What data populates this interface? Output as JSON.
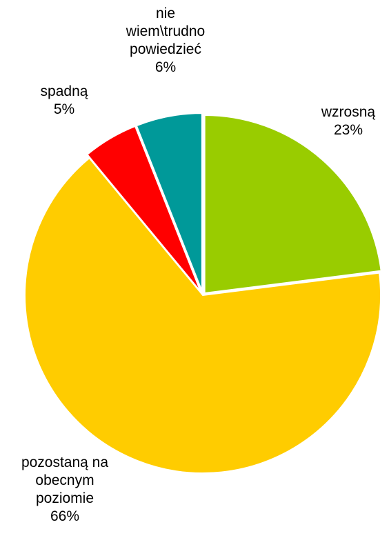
{
  "chart_data": {
    "type": "pie",
    "start_angle_deg": 0,
    "direction": "clockwise",
    "slices": [
      {
        "label_lines": [
          "wzrosną"
        ],
        "value": 23,
        "value_label": "23%",
        "color": "#99CC00"
      },
      {
        "label_lines": [
          "pozostaną na",
          "obecnym",
          "poziomie"
        ],
        "value": 66,
        "value_label": "66%",
        "color": "#FFCC00"
      },
      {
        "label_lines": [
          "spadną"
        ],
        "value": 5,
        "value_label": "5%",
        "color": "#FF0000"
      },
      {
        "label_lines": [
          "nie",
          "wiem\\trudno",
          "powiedzieć"
        ],
        "value": 6,
        "value_label": "6%",
        "color": "#009999"
      }
    ]
  }
}
